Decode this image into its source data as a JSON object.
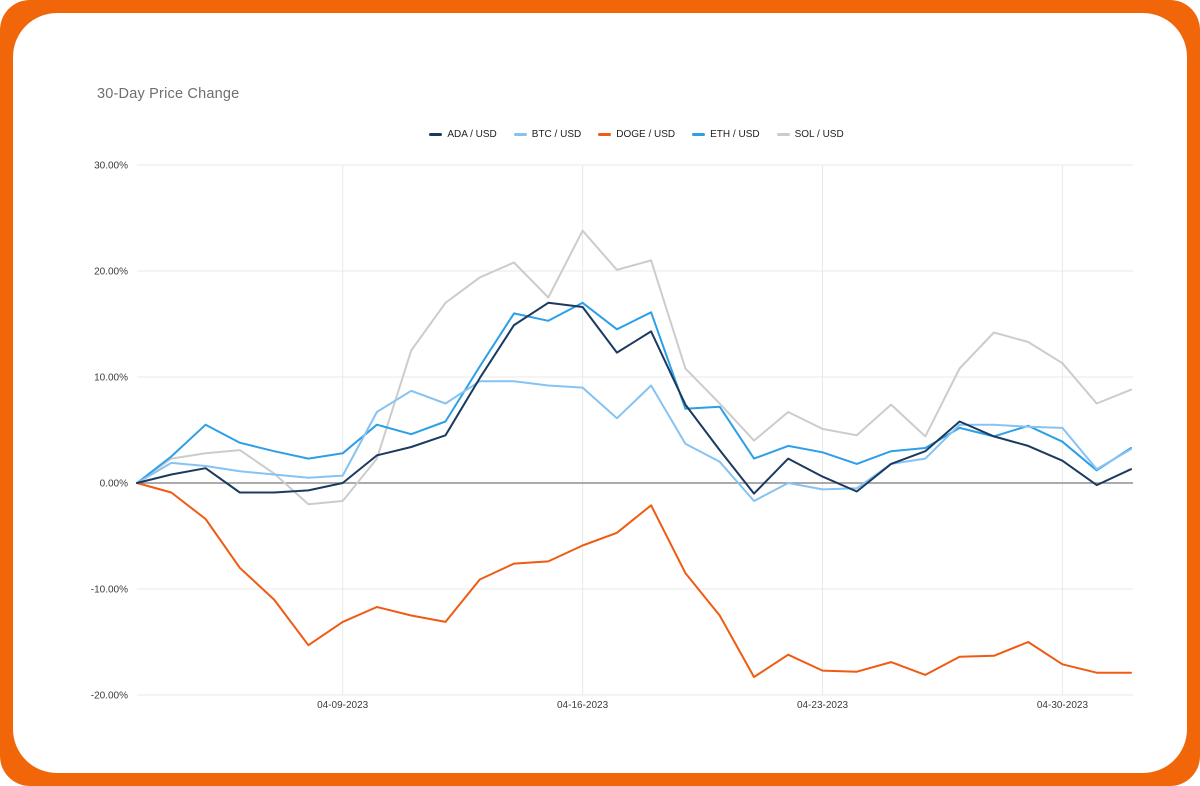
{
  "frame": {
    "border_color": "#F2660A",
    "card_color": "#FFFFFF"
  },
  "chart": {
    "title": "30-Day Price Change"
  },
  "chart_data": {
    "type": "line",
    "title": "30-Day Price Change",
    "legend_position": "top",
    "grid": true,
    "zero_line": true,
    "ylim": [
      -20,
      30
    ],
    "y_ticks": [
      {
        "value": 30,
        "label": "30.00%"
      },
      {
        "value": 20,
        "label": "20.00%"
      },
      {
        "value": 10,
        "label": "10.00%"
      },
      {
        "value": 0,
        "label": "0.00%"
      },
      {
        "value": -10,
        "label": "-10.00%"
      },
      {
        "value": -20,
        "label": "-20.00%"
      }
    ],
    "x_ticks": [
      {
        "index": 6,
        "label": "04-09-2023"
      },
      {
        "index": 13,
        "label": "04-16-2023"
      },
      {
        "index": 20,
        "label": "04-23-2023"
      },
      {
        "index": 27,
        "label": "04-30-2023"
      }
    ],
    "x": [
      "04-03-2023",
      "04-04-2023",
      "04-05-2023",
      "04-06-2023",
      "04-07-2023",
      "04-08-2023",
      "04-09-2023",
      "04-10-2023",
      "04-11-2023",
      "04-12-2023",
      "04-13-2023",
      "04-14-2023",
      "04-15-2023",
      "04-16-2023",
      "04-17-2023",
      "04-18-2023",
      "04-19-2023",
      "04-20-2023",
      "04-21-2023",
      "04-22-2023",
      "04-23-2023",
      "04-24-2023",
      "04-25-2023",
      "04-26-2023",
      "04-27-2023",
      "04-28-2023",
      "04-29-2023",
      "04-30-2023",
      "05-01-2023",
      "05-02-2023"
    ],
    "series": [
      {
        "name": "ADA / USD",
        "color": "#1b3a5f",
        "values": [
          0,
          0.8,
          1.4,
          -0.9,
          -0.9,
          -0.7,
          0.0,
          2.6,
          3.4,
          4.5,
          9.9,
          14.9,
          17.0,
          16.6,
          12.3,
          14.3,
          7.4,
          3.1,
          -1.0,
          2.3,
          0.6,
          -0.8,
          1.8,
          3.0,
          5.8,
          4.4,
          3.5,
          2.1,
          -0.2,
          1.3
        ]
      },
      {
        "name": "BTC / USD",
        "color": "#86c3f2",
        "values": [
          0,
          1.9,
          1.6,
          1.1,
          0.8,
          0.5,
          0.7,
          6.7,
          8.7,
          7.5,
          9.6,
          9.6,
          9.2,
          9.0,
          6.1,
          9.2,
          3.7,
          2.0,
          -1.7,
          0.0,
          -0.6,
          -0.5,
          1.8,
          2.3,
          5.5,
          5.5,
          5.3,
          5.2,
          1.3,
          3.2
        ]
      },
      {
        "name": "DOGE / USD",
        "color": "#ef5b12",
        "values": [
          0,
          -0.9,
          -3.4,
          -8.0,
          -11.0,
          -15.3,
          -13.1,
          -11.7,
          -12.5,
          -13.1,
          -9.1,
          -7.6,
          -7.4,
          -5.9,
          -4.7,
          -2.1,
          -8.5,
          -12.5,
          -18.3,
          -16.2,
          -17.7,
          -17.8,
          -16.9,
          -18.1,
          -16.4,
          -16.3,
          -15.0,
          -17.1,
          -17.9,
          -17.9
        ]
      },
      {
        "name": "ETH / USD",
        "color": "#2d9fe8",
        "values": [
          0,
          2.5,
          5.5,
          3.8,
          3.0,
          2.3,
          2.8,
          5.5,
          4.6,
          5.8,
          11.0,
          16.0,
          15.3,
          17.0,
          14.5,
          16.1,
          7.0,
          7.2,
          2.3,
          3.5,
          2.9,
          1.8,
          3.0,
          3.3,
          5.2,
          4.4,
          5.4,
          3.9,
          1.2,
          3.3
        ]
      },
      {
        "name": "SOL / USD",
        "color": "#cccccc",
        "values": [
          0,
          2.3,
          2.8,
          3.1,
          0.9,
          -2.0,
          -1.7,
          2.3,
          12.5,
          17.0,
          19.4,
          20.8,
          17.5,
          23.8,
          20.1,
          21.0,
          10.8,
          7.5,
          4.0,
          6.7,
          5.1,
          4.5,
          7.4,
          4.4,
          10.8,
          14.2,
          13.3,
          11.3,
          7.5,
          8.8
        ]
      }
    ],
    "style": {
      "gridline_color": "#e9e9e9",
      "zero_line_color": "#8f8f8f",
      "tick_label_color": "#3c3c3c",
      "title_color": "#6f6f6f"
    }
  }
}
